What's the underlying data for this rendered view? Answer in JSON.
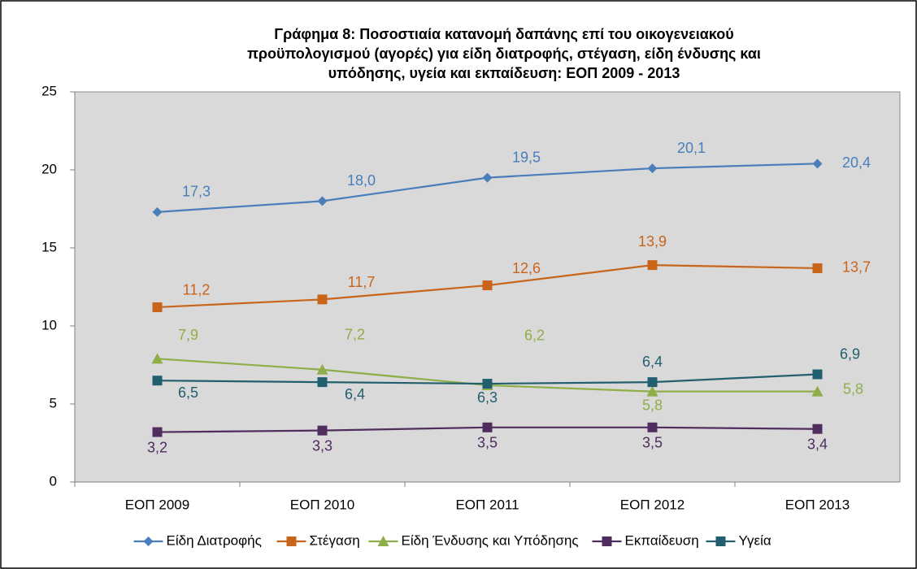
{
  "chart_data": {
    "type": "line",
    "title": [
      "Γράφημα 8: Ποσοστιαία κατανομή δαπάνης επί του οικογενειακού",
      "προϋπολογισμού (αγορές) για είδη διατροφής, στέγαση, είδη ένδυσης και",
      "υπόδησης, υγεία και εκπαίδευση:  ΕΟΠ 2009 - 2013"
    ],
    "categories": [
      "ΕΟΠ 2009",
      "ΕΟΠ 2010",
      "ΕΟΠ 2011",
      "ΕΟΠ 2012",
      "ΕΟΠ 2013"
    ],
    "ylim": [
      0,
      25
    ],
    "yticks": [
      0,
      5,
      10,
      15,
      20,
      25
    ],
    "grid": false,
    "legend": "bottom",
    "series": [
      {
        "name": "Είδη Διατροφής",
        "color": "#4a7ebb",
        "marker": "diamond",
        "values": [
          17.3,
          18.0,
          19.5,
          20.1,
          20.4
        ],
        "value_labels": [
          "17,3",
          "18,0",
          "19,5",
          "20,1",
          "20,4"
        ]
      },
      {
        "name": "Στέγαση",
        "color": "#c8651b",
        "marker": "square",
        "values": [
          11.2,
          11.7,
          12.6,
          13.9,
          13.7
        ],
        "value_labels": [
          "11,2",
          "11,7",
          "12,6",
          "13,9",
          "13,7"
        ]
      },
      {
        "name": "Είδη Ένδυσης και Υπόδησης",
        "color": "#8fae48",
        "marker": "triangle",
        "values": [
          7.9,
          7.2,
          6.2,
          5.8,
          5.8
        ],
        "value_labels": [
          "7,9",
          "7,2",
          "6,2",
          "5,8",
          "5,8"
        ]
      },
      {
        "name": "Εκπαίδευση",
        "color": "#4f2d5e",
        "marker": "square",
        "values": [
          3.2,
          3.3,
          3.5,
          3.5,
          3.4
        ],
        "value_labels": [
          "3,2",
          "3,3",
          "3,5",
          "3,5",
          "3,4"
        ]
      },
      {
        "name": "Υγεία",
        "color": "#215f6e",
        "marker": "square",
        "values": [
          6.5,
          6.4,
          6.3,
          6.4,
          6.9
        ],
        "value_labels": [
          "6,5",
          "6,4",
          "6,3",
          "6,4",
          "6,9"
        ]
      }
    ]
  }
}
